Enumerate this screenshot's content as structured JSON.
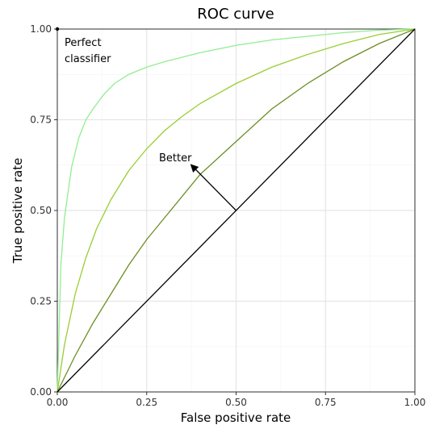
{
  "chart_data": {
    "type": "line",
    "title": "ROC curve",
    "xlabel": "False positive rate",
    "ylabel": "True positive rate",
    "xlim": [
      0,
      1
    ],
    "ylim": [
      0,
      1
    ],
    "grid": true,
    "x_ticks": [
      "0.00",
      "0.25",
      "0.50",
      "0.75",
      "1.00"
    ],
    "y_ticks": [
      "0.00",
      "0.25",
      "0.50",
      "0.75",
      "1.00"
    ],
    "series": [
      {
        "color": "#90ee90",
        "x": [
          0,
          0.01,
          0.02,
          0.04,
          0.06,
          0.08,
          0.1,
          0.13,
          0.16,
          0.2,
          0.25,
          0.3,
          0.4,
          0.5,
          0.6,
          0.7,
          0.8,
          0.9,
          1.0
        ],
        "y": [
          0,
          0.35,
          0.48,
          0.62,
          0.7,
          0.75,
          0.78,
          0.82,
          0.85,
          0.875,
          0.895,
          0.91,
          0.935,
          0.955,
          0.97,
          0.98,
          0.99,
          0.997,
          1.0
        ]
      },
      {
        "color": "#9acd32",
        "x": [
          0,
          0.02,
          0.05,
          0.08,
          0.11,
          0.15,
          0.2,
          0.25,
          0.3,
          0.35,
          0.4,
          0.5,
          0.6,
          0.7,
          0.8,
          0.9,
          1.0
        ],
        "y": [
          0,
          0.13,
          0.27,
          0.37,
          0.45,
          0.53,
          0.61,
          0.67,
          0.72,
          0.76,
          0.795,
          0.85,
          0.895,
          0.93,
          0.96,
          0.985,
          1.0
        ]
      },
      {
        "color": "#6b8e23",
        "x": [
          0,
          0.05,
          0.1,
          0.15,
          0.2,
          0.25,
          0.3,
          0.4,
          0.5,
          0.6,
          0.7,
          0.8,
          0.9,
          1.0
        ],
        "y": [
          0,
          0.1,
          0.19,
          0.27,
          0.35,
          0.42,
          0.48,
          0.6,
          0.69,
          0.78,
          0.85,
          0.91,
          0.96,
          1.0
        ]
      },
      {
        "color": "#000000",
        "x": [
          0,
          1
        ],
        "y": [
          0,
          1
        ]
      }
    ],
    "perfect_point": {
      "x": 0,
      "y": 1,
      "color": "#000000"
    },
    "annotations": {
      "perfect": [
        "Perfect",
        "classifier"
      ],
      "better": "Better",
      "arrow_from": {
        "x": 0.5,
        "y": 0.5
      },
      "arrow_to": {
        "x": 0.375,
        "y": 0.625
      }
    }
  }
}
